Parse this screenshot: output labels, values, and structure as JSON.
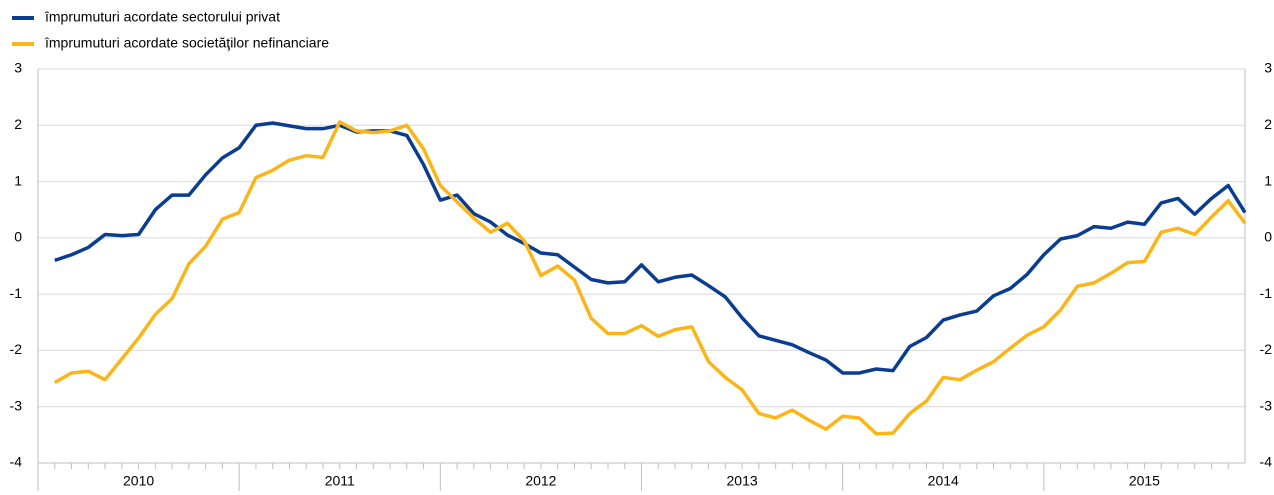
{
  "chart_data": {
    "type": "line",
    "categories": [
      "2010",
      null,
      null,
      null,
      null,
      null,
      null,
      null,
      null,
      null,
      null,
      null,
      "2011",
      null,
      null,
      null,
      null,
      null,
      null,
      null,
      null,
      null,
      null,
      null,
      "2012",
      null,
      null,
      null,
      null,
      null,
      null,
      null,
      null,
      null,
      null,
      null,
      "2013",
      null,
      null,
      null,
      null,
      null,
      null,
      null,
      null,
      null,
      null,
      null,
      "2014",
      null,
      null,
      null,
      null,
      null,
      null,
      null,
      null,
      null,
      null,
      null,
      "2015",
      null,
      null,
      null,
      null,
      null,
      null,
      null,
      null,
      null,
      null,
      null
    ],
    "series": [
      {
        "name": "împrumuturi acordate sectorului privat",
        "color": "#0a3d91",
        "values": [
          -0.4,
          -0.3,
          -0.17,
          0.06,
          0.04,
          0.06,
          0.5,
          0.76,
          0.76,
          1.12,
          1.42,
          1.6,
          2.0,
          2.04,
          1.99,
          1.94,
          1.94,
          2.0,
          1.88,
          1.9,
          1.9,
          1.82,
          1.3,
          0.67,
          0.76,
          0.43,
          0.28,
          0.05,
          -0.1,
          -0.27,
          -0.3,
          -0.52,
          -0.74,
          -0.8,
          -0.78,
          -0.48,
          -0.78,
          -0.7,
          -0.66,
          -0.85,
          -1.05,
          -1.42,
          -1.74,
          -1.82,
          -1.9,
          -2.04,
          -2.17,
          -2.4,
          -2.4,
          -2.33,
          -2.36,
          -1.93,
          -1.77,
          -1.46,
          -1.37,
          -1.3,
          -1.03,
          -0.9,
          -0.65,
          -0.3,
          -0.02,
          0.04,
          0.2,
          0.17,
          0.28,
          0.24,
          0.62,
          0.7,
          0.42,
          0.7,
          0.93,
          0.45
        ]
      },
      {
        "name": "împrumuturi acordate societăţilor nefinanciare",
        "color": "#fbb519",
        "values": [
          -2.57,
          -2.4,
          -2.37,
          -2.52,
          -2.15,
          -1.78,
          -1.36,
          -1.08,
          -0.46,
          -0.15,
          0.33,
          0.45,
          1.07,
          1.2,
          1.38,
          1.46,
          1.43,
          2.06,
          1.9,
          1.87,
          1.9,
          2.0,
          1.58,
          0.93,
          0.64,
          0.35,
          0.1,
          0.26,
          -0.05,
          -0.67,
          -0.5,
          -0.75,
          -1.43,
          -1.7,
          -1.7,
          -1.56,
          -1.75,
          -1.63,
          -1.58,
          -2.2,
          -2.48,
          -2.7,
          -3.12,
          -3.2,
          -3.06,
          -3.24,
          -3.4,
          -3.17,
          -3.2,
          -3.48,
          -3.47,
          -3.12,
          -2.9,
          -2.48,
          -2.52,
          -2.35,
          -2.2,
          -1.96,
          -1.73,
          -1.58,
          -1.28,
          -0.86,
          -0.8,
          -0.63,
          -0.44,
          -0.42,
          0.1,
          0.17,
          0.06,
          0.37,
          0.66,
          0.26
        ]
      }
    ],
    "ylim": [
      -4,
      3
    ],
    "yticks": [
      -4,
      -3,
      -2,
      -1,
      0,
      1,
      2,
      3
    ],
    "grid": true
  }
}
